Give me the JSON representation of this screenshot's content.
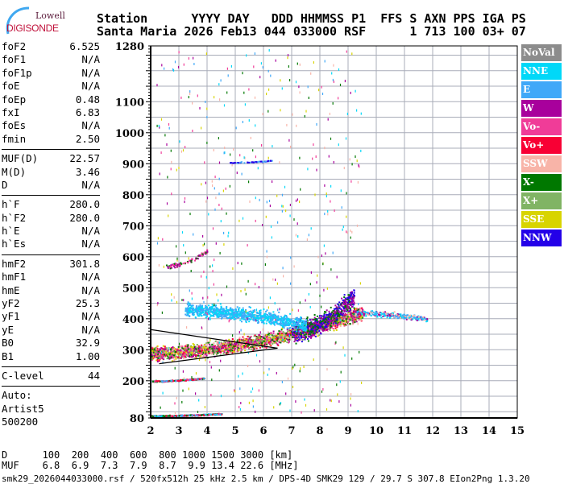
{
  "logo": {
    "top": "Lowell",
    "bottom": "DIGISONDE"
  },
  "header": {
    "line1": "Station      YYYY DAY   DDD HHMMSS P1  FFS S AXN PPS IGA PS",
    "line2": "Santa Maria 2026 Feb13 044 033000 RSF      1 713 100 03+ 07"
  },
  "params": [
    [
      [
        "foF2",
        "6.525"
      ],
      [
        "foF1",
        "N/A"
      ],
      [
        "foF1p",
        "N/A"
      ],
      [
        "foE",
        "N/A"
      ],
      [
        "foEp",
        "0.48"
      ],
      [
        "fxI",
        "6.83"
      ],
      [
        "foEs",
        "N/A"
      ],
      [
        "fmin",
        "2.50"
      ]
    ],
    [
      [
        "MUF(D)",
        "22.57"
      ],
      [
        "M(D)",
        "3.46"
      ],
      [
        "D",
        "N/A"
      ]
    ],
    [
      [
        "h`F",
        "280.0"
      ],
      [
        "h`F2",
        "280.0"
      ],
      [
        "h`E",
        "N/A"
      ],
      [
        "h`Es",
        "N/A"
      ]
    ],
    [
      [
        "hmF2",
        "301.8"
      ],
      [
        "hmF1",
        "N/A"
      ],
      [
        "hmE",
        "N/A"
      ],
      [
        "yF2",
        "25.3"
      ],
      [
        "yF1",
        "N/A"
      ],
      [
        "yE",
        "N/A"
      ],
      [
        "B0",
        "32.9"
      ],
      [
        "B1",
        "1.00"
      ]
    ],
    [
      [
        "C-level",
        "44"
      ]
    ]
  ],
  "autoscaling": [
    "Auto:",
    "Artist5",
    "500200"
  ],
  "legend": [
    {
      "label": "NoVal",
      "color": "#8c8c8c"
    },
    {
      "label": "NNE",
      "color": "#00d8f8"
    },
    {
      "label": "E",
      "color": "#40a8f8"
    },
    {
      "label": "W",
      "color": "#a8009c"
    },
    {
      "label": "Vo-",
      "color": "#f03c98"
    },
    {
      "label": "Vo+",
      "color": "#f80034"
    },
    {
      "label": "SSW",
      "color": "#f8b4a8"
    },
    {
      "label": "X-",
      "color": "#007800"
    },
    {
      "label": "X+",
      "color": "#80b464"
    },
    {
      "label": "SSE",
      "color": "#d8d400"
    },
    {
      "label": "NNW",
      "color": "#2400e8"
    }
  ],
  "bottom": {
    "d_row": "D      100  200  400  600  800 1000 1500 3000 [km]",
    "muf_row": "MUF    6.8  6.9  7.3  7.9  8.7  9.9 13.4 22.6 [MHz]",
    "footer": "smk29_2026044033000.rsf / 520fx512h 25 kHz 2.5 km / DPS-4D SMK29 129 / 29.7 S 307.8 EIon2Png 1.3.20"
  },
  "chart_data": {
    "type": "scatter",
    "xlabel": "",
    "ylabel": "",
    "xlim": [
      2,
      15
    ],
    "ylim": [
      80,
      1280
    ],
    "xticks": [
      "2",
      "3",
      "4",
      "5",
      "6",
      "7",
      "8",
      "9",
      "10",
      "11",
      "12",
      "13",
      "14",
      "15"
    ],
    "yticks": [
      80,
      200,
      300,
      400,
      500,
      600,
      700,
      800,
      900,
      1000,
      1100,
      1280
    ],
    "grid": true,
    "echo_regions": [
      {
        "colors": [
          "Vo+",
          "Vo-",
          "X-",
          "X+",
          "W",
          "SSE",
          "SSW"
        ],
        "f": [
          2.0,
          9.5
        ],
        "h": [
          290,
          420
        ],
        "spread": 30,
        "n": 2600
      },
      {
        "colors": [
          "NNW",
          "W",
          "X-"
        ],
        "f": [
          7.0,
          9.2
        ],
        "h": [
          360,
          470
        ],
        "spread": 45,
        "n": 700
      },
      {
        "colors": [
          "E",
          "NNE"
        ],
        "f": [
          3.2,
          7.5
        ],
        "h": [
          430,
          380
        ],
        "spread": 30,
        "n": 900
      },
      {
        "colors": [
          "E",
          "SSW",
          "NNE",
          "W"
        ],
        "f": [
          9.2,
          11.8
        ],
        "h": [
          420,
          400
        ],
        "spread": 12,
        "n": 260
      },
      {
        "colors": [
          "Vo+",
          "Vo-",
          "X-",
          "E"
        ],
        "f": [
          2.0,
          3.9
        ],
        "h": [
          200,
          210
        ],
        "spread": 3,
        "n": 220
      },
      {
        "colors": [
          "Vo+",
          "Vo-",
          "X-",
          "E",
          "NNE"
        ],
        "f": [
          2.0,
          4.5
        ],
        "h": [
          88,
          95
        ],
        "spread": 3,
        "n": 300
      },
      {
        "colors": [
          "W",
          "Vo-",
          "X-"
        ],
        "f": [
          2.5,
          4.0
        ],
        "h": [
          570,
          620
        ],
        "spread": 10,
        "n": 80
      },
      {
        "colors": [
          "NNW",
          "E"
        ],
        "f": [
          4.8,
          6.3
        ],
        "h": [
          905,
          912
        ],
        "spread": 2,
        "n": 60
      },
      {
        "colors": [
          "NNE",
          "E",
          "W",
          "Vo-",
          "SSE",
          "SSW",
          "X-"
        ],
        "f": [
          2.2,
          9.5
        ],
        "h": [
          100,
          1270
        ],
        "spread": 0,
        "n": 500
      }
    ],
    "fit_lines": [
      [
        [
          2.0,
          365
        ],
        [
          6.5,
          305
        ]
      ],
      [
        [
          2.3,
          255
        ],
        [
          6.5,
          305
        ]
      ]
    ]
  }
}
